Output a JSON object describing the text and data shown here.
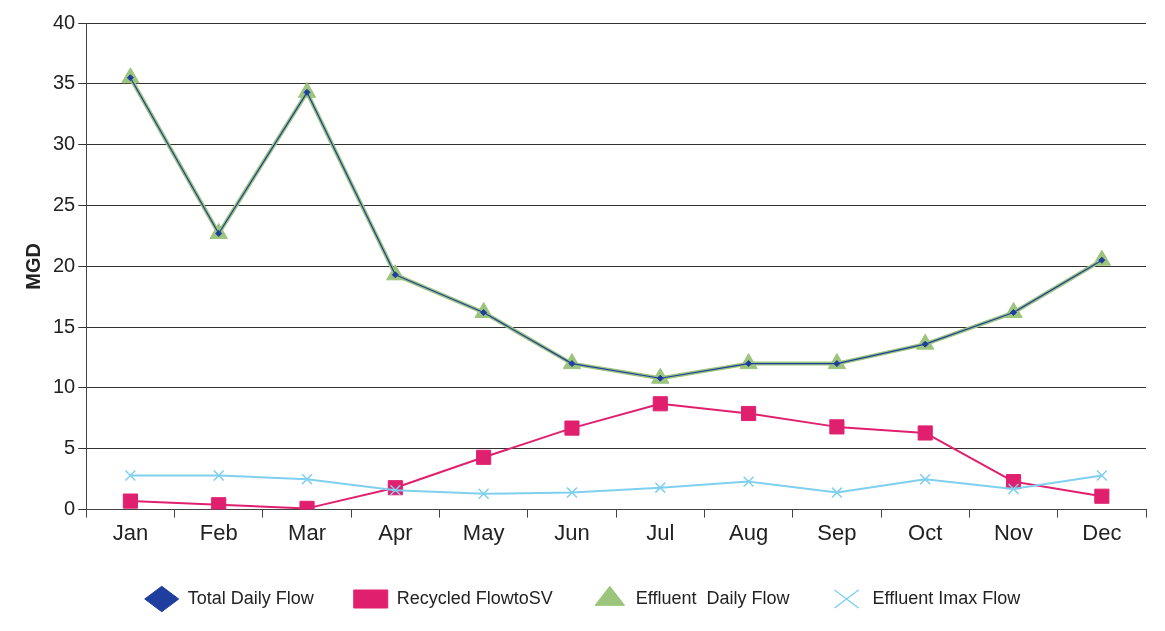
{
  "chart_data": {
    "type": "line",
    "ylabel": "MGD",
    "categories": [
      "Jan",
      "Feb",
      "Mar",
      "Apr",
      "May",
      "Jun",
      "Jul",
      "Aug",
      "Sep",
      "Oct",
      "Nov",
      "Dec"
    ],
    "series": [
      {
        "name": "Total Daily Flow",
        "color": "#1f3f9f",
        "marker": "diamond",
        "values": [
          35.5,
          22.7,
          34.3,
          19.3,
          16.2,
          12.0,
          10.8,
          12.0,
          12.0,
          13.6,
          16.2,
          20.5
        ]
      },
      {
        "name": "Recycled FlowtoSV",
        "color": "#e0206f",
        "marker": "square",
        "values": [
          0.7,
          0.4,
          0.1,
          1.8,
          4.3,
          6.7,
          8.7,
          7.9,
          6.8,
          6.3,
          2.3,
          1.1
        ]
      },
      {
        "name": "Effluent  Daily Flow",
        "color": "#9cc47c",
        "marker": "triangle",
        "values": [
          35.5,
          22.7,
          34.3,
          19.3,
          16.2,
          12.0,
          10.8,
          12.0,
          12.0,
          13.6,
          16.2,
          20.5
        ]
      },
      {
        "name": "Effluent Imax Flow",
        "color": "#7fcfef",
        "marker": "cross",
        "values": [
          2.8,
          2.8,
          2.5,
          1.6,
          1.3,
          1.4,
          1.8,
          2.3,
          1.4,
          2.5,
          1.7,
          2.8
        ]
      }
    ],
    "ylim": [
      0,
      40
    ],
    "yticks": [
      0,
      5,
      10,
      15,
      20,
      25,
      30,
      35,
      40
    ],
    "grid": "y",
    "legend": "bottom"
  }
}
